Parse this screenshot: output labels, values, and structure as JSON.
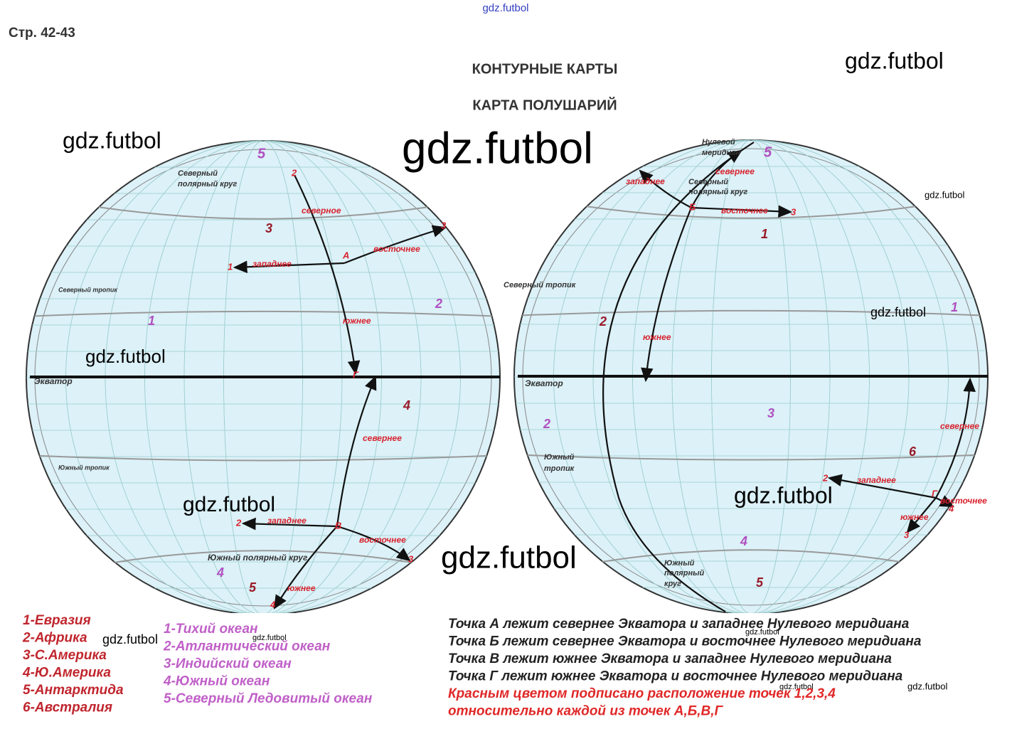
{
  "page": "Стр. 42-43",
  "header": {
    "site": "gdz.futbol",
    "title": "КОНТУРНЫЕ КАРТЫ",
    "subtitle": "КАРТА ПОЛУШАРИЙ"
  },
  "watermarks": [
    "gdz.futbol",
    "gdz.futbol",
    "gdz.futbol",
    "gdz.futbol",
    "gdz.futbol",
    "gdz.futbol",
    "gdz.futbol",
    "gdz.futbol",
    "gdz.futbol",
    "gdz.futbol",
    "gdz.futbol",
    "gdz.futbol",
    "gdz.futbol",
    "gdz.futbol"
  ],
  "west_map": {
    "labels": [
      "5",
      "Северный",
      "полярный круг",
      "2",
      "северное",
      "3",
      "3",
      "восточнее",
      "А",
      "1",
      "западнее",
      "Северный тропик",
      "1",
      "2",
      "южнее",
      "Экватор",
      "Г",
      "4",
      "севернее",
      "Южный тропик",
      "2",
      "западнее",
      "В",
      "восточнее",
      "3",
      "Южный полярный круг",
      "4",
      "5",
      "южнее",
      "4"
    ]
  },
  "east_map": {
    "labels": [
      "Нулевой",
      "меридиан",
      "5",
      "севернее",
      "западнее",
      "Северный",
      "полярный круг",
      "Б",
      "восточнее",
      "3",
      "1",
      "Северный тропик",
      "2",
      "южнее",
      "1",
      "Экватор",
      "3",
      "2",
      "севернее",
      "6",
      "Южный",
      "тропик",
      "2",
      "западнее",
      "Г",
      "восточнее",
      "4",
      "южнее",
      "3",
      "4",
      "Южный",
      "полярный",
      "круг",
      "5"
    ]
  },
  "continents": [
    "1-Евразия",
    "2-Африка",
    "3-С.Америка",
    "4-Ю.Америка",
    "5-Антарктида",
    "6-Австралия"
  ],
  "oceans": [
    "1-Тихий океан",
    "2-Атлантический океан",
    "3-Индийский океан",
    "4-Южный океан",
    "5-Северный Ледовитый океан"
  ],
  "statements": [
    "Точка А лежит севернее Экватора и западнее Нулевого меридиана",
    "Точка Б лежит севернее Экватора и восточнее Нулевого меридиана",
    "Точка В лежит южнее Экватора и западнее Нулевого меридиана",
    "Точка Г лежит южнее Экватора и восточнее Нулевого меридиана",
    "Красным цветом подписано расположение точек 1,2,3,4",
    "относительно каждой из точек А,Б,В,Г"
  ]
}
